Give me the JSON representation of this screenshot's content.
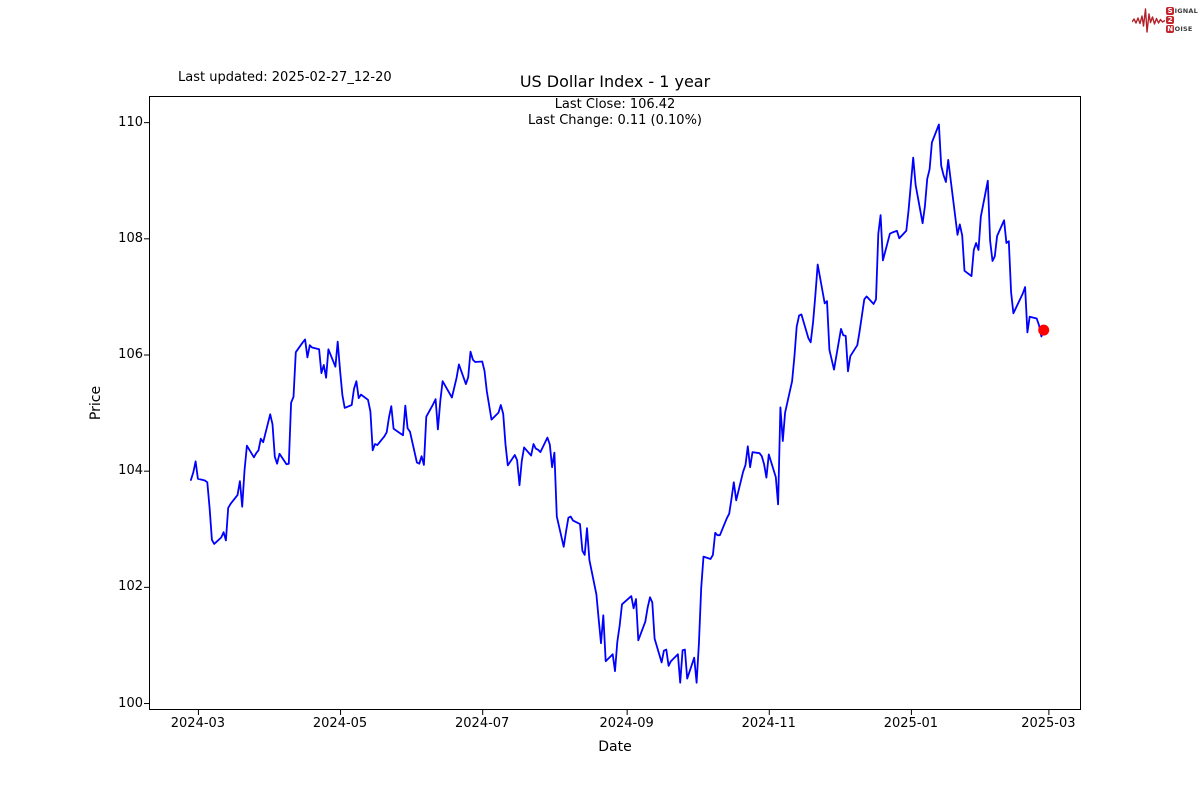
{
  "page": {
    "last_updated": "Last updated: 2025-02-27_12-20"
  },
  "logo": {
    "line1_first": "S",
    "line1_rest": "IGNAL",
    "line2_first": "2",
    "line2_rest": "",
    "line3_first": "N",
    "line3_rest": "OISE",
    "box_color": "#c1272d",
    "wave_color": "#b2222a"
  },
  "chart_data": {
    "type": "line",
    "title": "US Dollar Index - 1 year",
    "annotation_line1": "Last Close: 106.42",
    "annotation_line2": "Last Change: 0.11 (0.10%)",
    "xlabel": "Date",
    "ylabel": "Price",
    "last_close": 106.42,
    "last_change": "0.11 (0.10%)",
    "line_color": "#0000ff",
    "last_point_color": "#ff0000",
    "axis_color": "#000000",
    "grid": false,
    "legend": null,
    "ylim": [
      99.88,
      110.45
    ],
    "xlim": [
      "2024-02-09",
      "2025-03-15"
    ],
    "y_ticks": [
      100,
      102,
      104,
      106,
      108,
      110
    ],
    "x_ticks": [
      {
        "label": "2024-03",
        "date": "2024-03-01"
      },
      {
        "label": "2024-05",
        "date": "2024-05-01"
      },
      {
        "label": "2024-07",
        "date": "2024-07-01"
      },
      {
        "label": "2024-09",
        "date": "2024-09-01"
      },
      {
        "label": "2024-11",
        "date": "2024-11-01"
      },
      {
        "label": "2025-01",
        "date": "2025-01-01"
      },
      {
        "label": "2025-03",
        "date": "2025-03-01"
      }
    ],
    "last_point": {
      "date": "2025-02-27",
      "value": 106.42
    },
    "series": [
      {
        "name": "US Dollar Index",
        "points": [
          [
            "2024-02-27",
            103.84
          ],
          [
            "2024-02-28",
            103.97
          ],
          [
            "2024-02-29",
            104.16
          ],
          [
            "2024-03-01",
            103.86
          ],
          [
            "2024-03-04",
            103.83
          ],
          [
            "2024-03-05",
            103.8
          ],
          [
            "2024-03-06",
            103.36
          ],
          [
            "2024-03-07",
            102.81
          ],
          [
            "2024-03-08",
            102.74
          ],
          [
            "2024-03-11",
            102.85
          ],
          [
            "2024-03-12",
            102.94
          ],
          [
            "2024-03-13",
            102.8
          ],
          [
            "2024-03-14",
            103.36
          ],
          [
            "2024-03-15",
            103.43
          ],
          [
            "2024-03-18",
            103.58
          ],
          [
            "2024-03-19",
            103.82
          ],
          [
            "2024-03-20",
            103.38
          ],
          [
            "2024-03-21",
            104.0
          ],
          [
            "2024-03-22",
            104.43
          ],
          [
            "2024-03-25",
            104.23
          ],
          [
            "2024-03-26",
            104.3
          ],
          [
            "2024-03-27",
            104.35
          ],
          [
            "2024-03-28",
            104.55
          ],
          [
            "2024-03-29",
            104.49
          ],
          [
            "2024-04-01",
            104.97
          ],
          [
            "2024-04-02",
            104.8
          ],
          [
            "2024-04-03",
            104.24
          ],
          [
            "2024-04-04",
            104.12
          ],
          [
            "2024-04-05",
            104.29
          ],
          [
            "2024-04-08",
            104.11
          ],
          [
            "2024-04-09",
            104.12
          ],
          [
            "2024-04-10",
            105.17
          ],
          [
            "2024-04-11",
            105.27
          ],
          [
            "2024-04-12",
            106.04
          ],
          [
            "2024-04-15",
            106.21
          ],
          [
            "2024-04-16",
            106.26
          ],
          [
            "2024-04-17",
            105.95
          ],
          [
            "2024-04-18",
            106.16
          ],
          [
            "2024-04-19",
            106.12
          ],
          [
            "2024-04-22",
            106.09
          ],
          [
            "2024-04-23",
            105.68
          ],
          [
            "2024-04-24",
            105.82
          ],
          [
            "2024-04-25",
            105.6
          ],
          [
            "2024-04-26",
            106.09
          ],
          [
            "2024-04-29",
            105.79
          ],
          [
            "2024-04-30",
            106.22
          ],
          [
            "2024-05-01",
            105.72
          ],
          [
            "2024-05-02",
            105.3
          ],
          [
            "2024-05-03",
            105.08
          ],
          [
            "2024-05-06",
            105.13
          ],
          [
            "2024-05-07",
            105.41
          ],
          [
            "2024-05-08",
            105.54
          ],
          [
            "2024-05-09",
            105.25
          ],
          [
            "2024-05-10",
            105.31
          ],
          [
            "2024-05-13",
            105.22
          ],
          [
            "2024-05-14",
            105.02
          ],
          [
            "2024-05-15",
            104.35
          ],
          [
            "2024-05-16",
            104.46
          ],
          [
            "2024-05-17",
            104.44
          ],
          [
            "2024-05-20",
            104.59
          ],
          [
            "2024-05-21",
            104.66
          ],
          [
            "2024-05-22",
            104.92
          ],
          [
            "2024-05-23",
            105.11
          ],
          [
            "2024-05-24",
            104.72
          ],
          [
            "2024-05-28",
            104.61
          ],
          [
            "2024-05-29",
            105.12
          ],
          [
            "2024-05-30",
            104.73
          ],
          [
            "2024-05-31",
            104.67
          ],
          [
            "2024-06-03",
            104.14
          ],
          [
            "2024-06-04",
            104.12
          ],
          [
            "2024-06-05",
            104.25
          ],
          [
            "2024-06-06",
            104.1
          ],
          [
            "2024-06-07",
            104.93
          ],
          [
            "2024-06-10",
            105.15
          ],
          [
            "2024-06-11",
            105.23
          ],
          [
            "2024-06-12",
            104.71
          ],
          [
            "2024-06-13",
            105.2
          ],
          [
            "2024-06-14",
            105.54
          ],
          [
            "2024-06-17",
            105.33
          ],
          [
            "2024-06-18",
            105.26
          ],
          [
            "2024-06-20",
            105.6
          ],
          [
            "2024-06-21",
            105.83
          ],
          [
            "2024-06-24",
            105.49
          ],
          [
            "2024-06-25",
            105.61
          ],
          [
            "2024-06-26",
            106.05
          ],
          [
            "2024-06-27",
            105.91
          ],
          [
            "2024-06-28",
            105.87
          ],
          [
            "2024-07-01",
            105.88
          ],
          [
            "2024-07-02",
            105.72
          ],
          [
            "2024-07-03",
            105.37
          ],
          [
            "2024-07-05",
            104.88
          ],
          [
            "2024-07-08",
            105.0
          ],
          [
            "2024-07-09",
            105.13
          ],
          [
            "2024-07-10",
            104.98
          ],
          [
            "2024-07-11",
            104.45
          ],
          [
            "2024-07-12",
            104.09
          ],
          [
            "2024-07-15",
            104.27
          ],
          [
            "2024-07-16",
            104.18
          ],
          [
            "2024-07-17",
            103.75
          ],
          [
            "2024-07-18",
            104.17
          ],
          [
            "2024-07-19",
            104.4
          ],
          [
            "2024-07-22",
            104.26
          ],
          [
            "2024-07-23",
            104.46
          ],
          [
            "2024-07-24",
            104.38
          ],
          [
            "2024-07-25",
            104.36
          ],
          [
            "2024-07-26",
            104.32
          ],
          [
            "2024-07-29",
            104.57
          ],
          [
            "2024-07-30",
            104.45
          ],
          [
            "2024-07-31",
            104.06
          ],
          [
            "2024-08-01",
            104.31
          ],
          [
            "2024-08-02",
            103.21
          ],
          [
            "2024-08-05",
            102.69
          ],
          [
            "2024-08-06",
            102.96
          ],
          [
            "2024-08-07",
            103.19
          ],
          [
            "2024-08-08",
            103.21
          ],
          [
            "2024-08-09",
            103.14
          ],
          [
            "2024-08-12",
            103.08
          ],
          [
            "2024-08-13",
            102.62
          ],
          [
            "2024-08-14",
            102.55
          ],
          [
            "2024-08-15",
            103.01
          ],
          [
            "2024-08-16",
            102.46
          ],
          [
            "2024-08-19",
            101.87
          ],
          [
            "2024-08-20",
            101.44
          ],
          [
            "2024-08-21",
            101.03
          ],
          [
            "2024-08-22",
            101.51
          ],
          [
            "2024-08-23",
            100.72
          ],
          [
            "2024-08-26",
            100.84
          ],
          [
            "2024-08-27",
            100.55
          ],
          [
            "2024-08-28",
            101.05
          ],
          [
            "2024-08-29",
            101.34
          ],
          [
            "2024-08-30",
            101.7
          ],
          [
            "2024-09-03",
            101.84
          ],
          [
            "2024-09-04",
            101.63
          ],
          [
            "2024-09-05",
            101.79
          ],
          [
            "2024-09-06",
            101.08
          ],
          [
            "2024-09-09",
            101.4
          ],
          [
            "2024-09-10",
            101.64
          ],
          [
            "2024-09-11",
            101.82
          ],
          [
            "2024-09-12",
            101.73
          ],
          [
            "2024-09-13",
            101.11
          ],
          [
            "2024-09-16",
            100.7
          ],
          [
            "2024-09-17",
            100.9
          ],
          [
            "2024-09-18",
            100.92
          ],
          [
            "2024-09-19",
            100.64
          ],
          [
            "2024-09-20",
            100.72
          ],
          [
            "2024-09-23",
            100.84
          ],
          [
            "2024-09-24",
            100.35
          ],
          [
            "2024-09-25",
            100.91
          ],
          [
            "2024-09-26",
            100.92
          ],
          [
            "2024-09-27",
            100.42
          ],
          [
            "2024-09-30",
            100.78
          ],
          [
            "2024-10-01",
            100.35
          ],
          [
            "2024-10-02",
            101.02
          ],
          [
            "2024-10-03",
            101.98
          ],
          [
            "2024-10-04",
            102.52
          ],
          [
            "2024-10-07",
            102.48
          ],
          [
            "2024-10-08",
            102.55
          ],
          [
            "2024-10-09",
            102.93
          ],
          [
            "2024-10-10",
            102.89
          ],
          [
            "2024-10-11",
            102.89
          ],
          [
            "2024-10-14",
            103.18
          ],
          [
            "2024-10-15",
            103.26
          ],
          [
            "2024-10-16",
            103.52
          ],
          [
            "2024-10-17",
            103.8
          ],
          [
            "2024-10-18",
            103.49
          ],
          [
            "2024-10-21",
            103.98
          ],
          [
            "2024-10-22",
            104.1
          ],
          [
            "2024-10-23",
            104.42
          ],
          [
            "2024-10-24",
            104.06
          ],
          [
            "2024-10-25",
            104.32
          ],
          [
            "2024-10-28",
            104.3
          ],
          [
            "2024-10-29",
            104.25
          ],
          [
            "2024-10-30",
            104.11
          ],
          [
            "2024-10-31",
            103.88
          ],
          [
            "2024-11-01",
            104.28
          ],
          [
            "2024-11-04",
            103.89
          ],
          [
            "2024-11-05",
            103.42
          ],
          [
            "2024-11-06",
            105.09
          ],
          [
            "2024-11-07",
            104.51
          ],
          [
            "2024-11-08",
            105.0
          ],
          [
            "2024-11-11",
            105.54
          ],
          [
            "2024-11-12",
            105.96
          ],
          [
            "2024-11-13",
            106.48
          ],
          [
            "2024-11-14",
            106.67
          ],
          [
            "2024-11-15",
            106.69
          ],
          [
            "2024-11-18",
            106.28
          ],
          [
            "2024-11-19",
            106.21
          ],
          [
            "2024-11-20",
            106.56
          ],
          [
            "2024-11-21",
            107.03
          ],
          [
            "2024-11-22",
            107.55
          ],
          [
            "2024-11-25",
            106.88
          ],
          [
            "2024-11-26",
            106.92
          ],
          [
            "2024-11-27",
            106.08
          ],
          [
            "2024-11-29",
            105.74
          ],
          [
            "2024-12-02",
            106.44
          ],
          [
            "2024-12-03",
            106.33
          ],
          [
            "2024-12-04",
            106.32
          ],
          [
            "2024-12-05",
            105.71
          ],
          [
            "2024-12-06",
            105.97
          ],
          [
            "2024-12-09",
            106.16
          ],
          [
            "2024-12-10",
            106.4
          ],
          [
            "2024-12-11",
            106.68
          ],
          [
            "2024-12-12",
            106.95
          ],
          [
            "2024-12-13",
            107.0
          ],
          [
            "2024-12-16",
            106.87
          ],
          [
            "2024-12-17",
            106.95
          ],
          [
            "2024-12-18",
            108.08
          ],
          [
            "2024-12-19",
            108.4
          ],
          [
            "2024-12-20",
            107.62
          ],
          [
            "2024-12-23",
            108.08
          ],
          [
            "2024-12-24",
            108.1
          ],
          [
            "2024-12-26",
            108.13
          ],
          [
            "2024-12-27",
            108.0
          ],
          [
            "2024-12-30",
            108.13
          ],
          [
            "2024-12-31",
            108.49
          ],
          [
            "2025-01-02",
            109.39
          ],
          [
            "2025-01-03",
            108.92
          ],
          [
            "2025-01-06",
            108.26
          ],
          [
            "2025-01-07",
            108.55
          ],
          [
            "2025-01-08",
            109.02
          ],
          [
            "2025-01-09",
            109.19
          ],
          [
            "2025-01-10",
            109.65
          ],
          [
            "2025-01-13",
            109.96
          ],
          [
            "2025-01-14",
            109.25
          ],
          [
            "2025-01-15",
            109.09
          ],
          [
            "2025-01-16",
            108.97
          ],
          [
            "2025-01-17",
            109.35
          ],
          [
            "2025-01-21",
            108.06
          ],
          [
            "2025-01-22",
            108.24
          ],
          [
            "2025-01-23",
            108.05
          ],
          [
            "2025-01-24",
            107.44
          ],
          [
            "2025-01-27",
            107.35
          ],
          [
            "2025-01-28",
            107.8
          ],
          [
            "2025-01-29",
            107.92
          ],
          [
            "2025-01-30",
            107.8
          ],
          [
            "2025-01-31",
            108.37
          ],
          [
            "2025-02-03",
            108.99
          ],
          [
            "2025-02-04",
            107.96
          ],
          [
            "2025-02-05",
            107.61
          ],
          [
            "2025-02-06",
            107.69
          ],
          [
            "2025-02-07",
            108.04
          ],
          [
            "2025-02-10",
            108.31
          ],
          [
            "2025-02-11",
            107.92
          ],
          [
            "2025-02-12",
            107.95
          ],
          [
            "2025-02-13",
            107.07
          ],
          [
            "2025-02-14",
            106.71
          ],
          [
            "2025-02-18",
            107.05
          ],
          [
            "2025-02-19",
            107.16
          ],
          [
            "2025-02-20",
            106.38
          ],
          [
            "2025-02-21",
            106.65
          ],
          [
            "2025-02-24",
            106.62
          ],
          [
            "2025-02-25",
            106.5
          ],
          [
            "2025-02-26",
            106.31
          ],
          [
            "2025-02-27",
            106.42
          ]
        ]
      }
    ]
  }
}
